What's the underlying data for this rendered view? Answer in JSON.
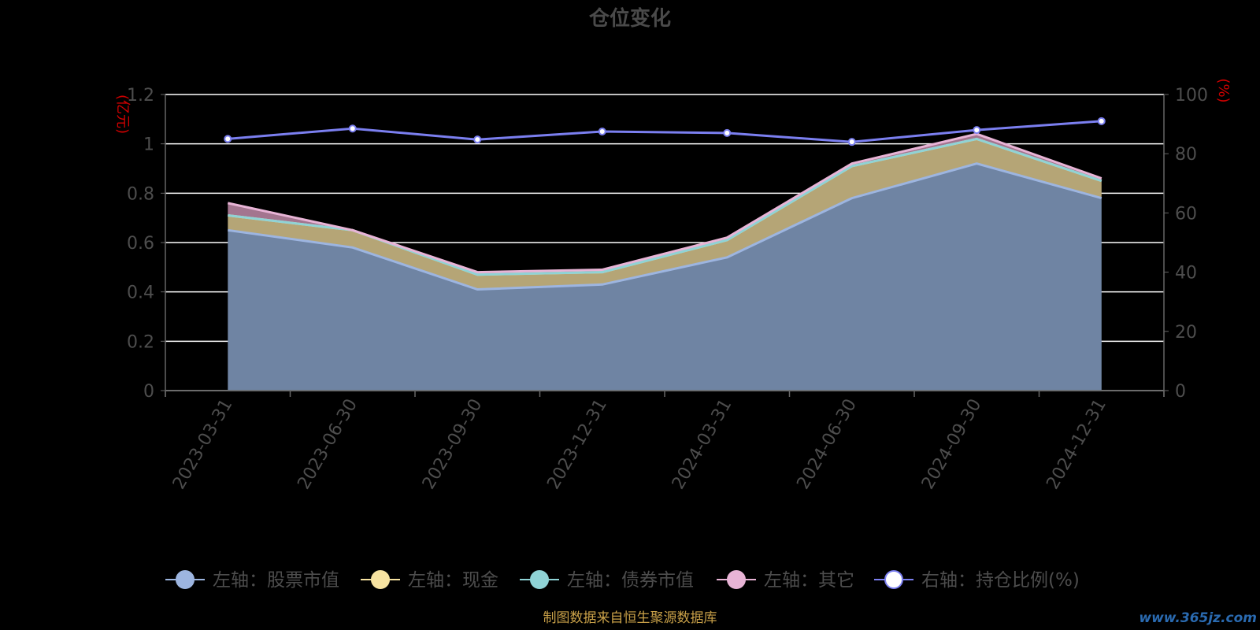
{
  "chart_data": {
    "type": "area",
    "title": "仓位变化",
    "x": [
      "2023-03-31",
      "2023-06-30",
      "2023-09-30",
      "2023-12-31",
      "2024-03-31",
      "2024-06-30",
      "2024-09-30",
      "2024-12-31"
    ],
    "left_axis": {
      "unit": "(亿元)",
      "ylim": [
        0,
        1.2
      ],
      "ticks": [
        "0",
        "0.2",
        "0.4",
        "0.6",
        "0.8",
        "1",
        "1.2"
      ]
    },
    "right_axis": {
      "unit": "(%)",
      "ylim": [
        0,
        100
      ],
      "ticks": [
        "0",
        "20",
        "40",
        "60",
        "80",
        "100"
      ]
    },
    "series": [
      {
        "name": "左轴：股票市值",
        "axis": "left",
        "stacked": true,
        "color": "#9db5e0",
        "fill": "#6f84a3",
        "values": [
          0.65,
          0.58,
          0.41,
          0.43,
          0.54,
          0.78,
          0.92,
          0.78
        ]
      },
      {
        "name": "左轴：现金",
        "axis": "left",
        "stacked": true,
        "color": "#f7e3a1",
        "fill": "#b5a576",
        "values": [
          0.06,
          0.07,
          0.06,
          0.05,
          0.07,
          0.13,
          0.1,
          0.07
        ]
      },
      {
        "name": "左轴：债券市值",
        "axis": "left",
        "stacked": true,
        "color": "#8fd3d6",
        "fill": "#8fd3d6",
        "values": [
          0,
          0,
          0,
          0,
          0,
          0,
          0,
          0
        ]
      },
      {
        "name": "左轴：其它",
        "axis": "left",
        "stacked": true,
        "color": "#e8b4d6",
        "fill": "#a3758f",
        "values": [
          0.05,
          0,
          0.01,
          0.01,
          0.01,
          0.01,
          0.02,
          0.01
        ]
      },
      {
        "name": "右轴：持仓比例(%)",
        "axis": "right",
        "type": "line",
        "color": "#7b7ff0",
        "values": [
          85,
          88.5,
          84.8,
          87.5,
          87,
          84,
          88,
          91
        ]
      }
    ],
    "legend_position": "bottom",
    "grid": true
  },
  "source_note": "制图数据来自恒生聚源数据库",
  "watermark": "www.365jz.com"
}
